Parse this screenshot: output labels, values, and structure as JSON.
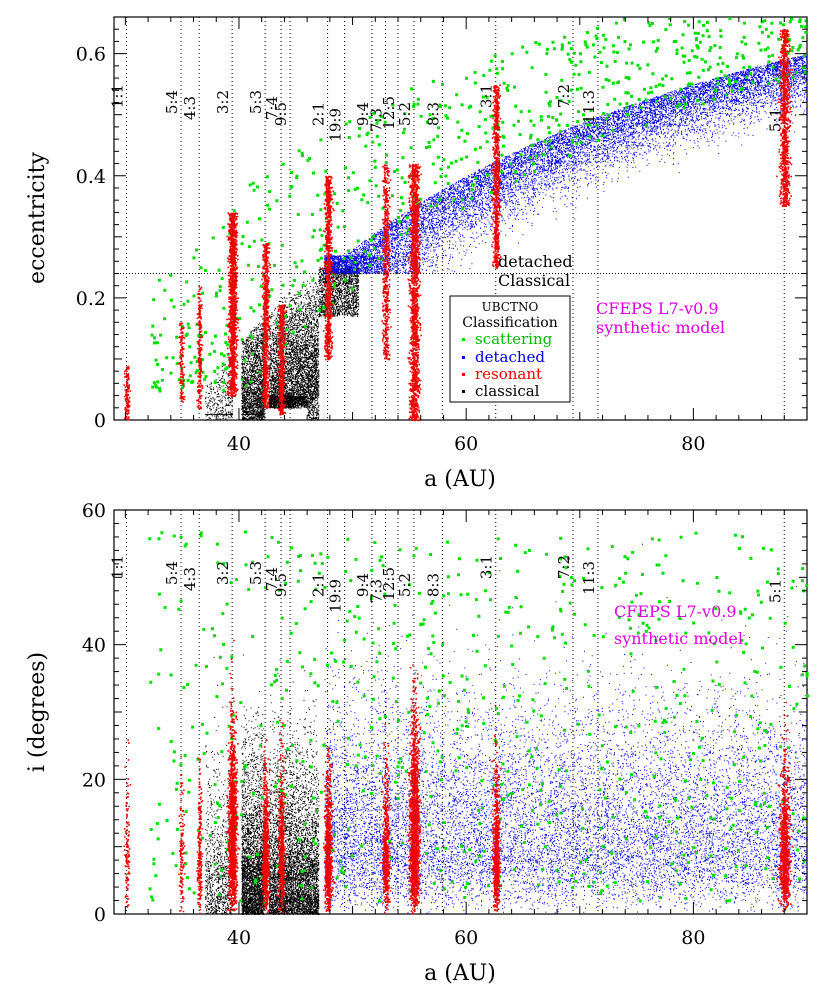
{
  "chart_data": [
    {
      "type": "scatter",
      "panel": "top",
      "xlabel": "a (AU)",
      "ylabel": "eccentricity",
      "xlim": [
        29,
        90
      ],
      "ylim": [
        0,
        0.66
      ],
      "xticks": [
        40,
        60,
        80
      ],
      "yticks": [
        0,
        0.2,
        0.4,
        0.6
      ],
      "ytick_labels": [
        "0",
        "0.2",
        "0.4",
        "0.6"
      ],
      "model_label_line1": "CFEPS L7-v0.9",
      "model_label_line2": "synthetic model",
      "legend": {
        "title_line1": "UBCTNO",
        "title_line2": "Classification",
        "entries": [
          {
            "name": "scattering",
            "color": "#00dd00"
          },
          {
            "name": "detached",
            "color": "#0000dd"
          },
          {
            "name": "resonant",
            "color": "#ee0000"
          },
          {
            "name": "classical",
            "color": "#000000"
          }
        ],
        "placement": "center-right"
      },
      "region_labels": {
        "upper": "detached",
        "lower": "Classical"
      },
      "divider_e": 0.24
    },
    {
      "type": "scatter",
      "panel": "bottom",
      "xlabel": "a (AU)",
      "ylabel": "i (degrees)",
      "xlim": [
        29,
        90
      ],
      "ylim": [
        0,
        60
      ],
      "xticks": [
        40,
        60,
        80
      ],
      "yticks": [
        0,
        20,
        40,
        60
      ],
      "ytick_labels": [
        "0",
        "20",
        "40",
        "60"
      ],
      "model_label_line1": "CFEPS L7-v0.9",
      "model_label_line2": "synthetic model"
    }
  ],
  "resonances": [
    {
      "label": "1:1",
      "a": 30.1,
      "label_rank": 0
    },
    {
      "label": "5:4",
      "a": 34.9,
      "label_rank": 1
    },
    {
      "label": "4:3",
      "a": 36.5,
      "label_rank": 2
    },
    {
      "label": "3:2",
      "a": 39.4,
      "label_rank": 1
    },
    {
      "label": "5:3",
      "a": 42.3,
      "label_rank": 1
    },
    {
      "label": "7:4",
      "a": 43.7,
      "label_rank": 2
    },
    {
      "label": "9:5",
      "a": 44.5,
      "label_rank": 3
    },
    {
      "label": "2:1",
      "a": 47.8,
      "label_rank": 3
    },
    {
      "label": "19:9",
      "a": 49.3,
      "label_rank": 4
    },
    {
      "label": "9:4",
      "a": 51.7,
      "label_rank": 3
    },
    {
      "label": "7:3",
      "a": 52.9,
      "label_rank": 4
    },
    {
      "label": "12:5",
      "a": 54.0,
      "label_rank": 2
    },
    {
      "label": "5:2",
      "a": 55.4,
      "label_rank": 3
    },
    {
      "label": "8:3",
      "a": 57.9,
      "label_rank": 3
    },
    {
      "label": "3:1",
      "a": 62.6,
      "label_rank": 0
    },
    {
      "label": "7:2",
      "a": 69.4,
      "label_rank": 0
    },
    {
      "label": "11:3",
      "a": 71.6,
      "label_rank": 1
    },
    {
      "label": "5:1",
      "a": 88.0,
      "label_rank": 4
    }
  ]
}
